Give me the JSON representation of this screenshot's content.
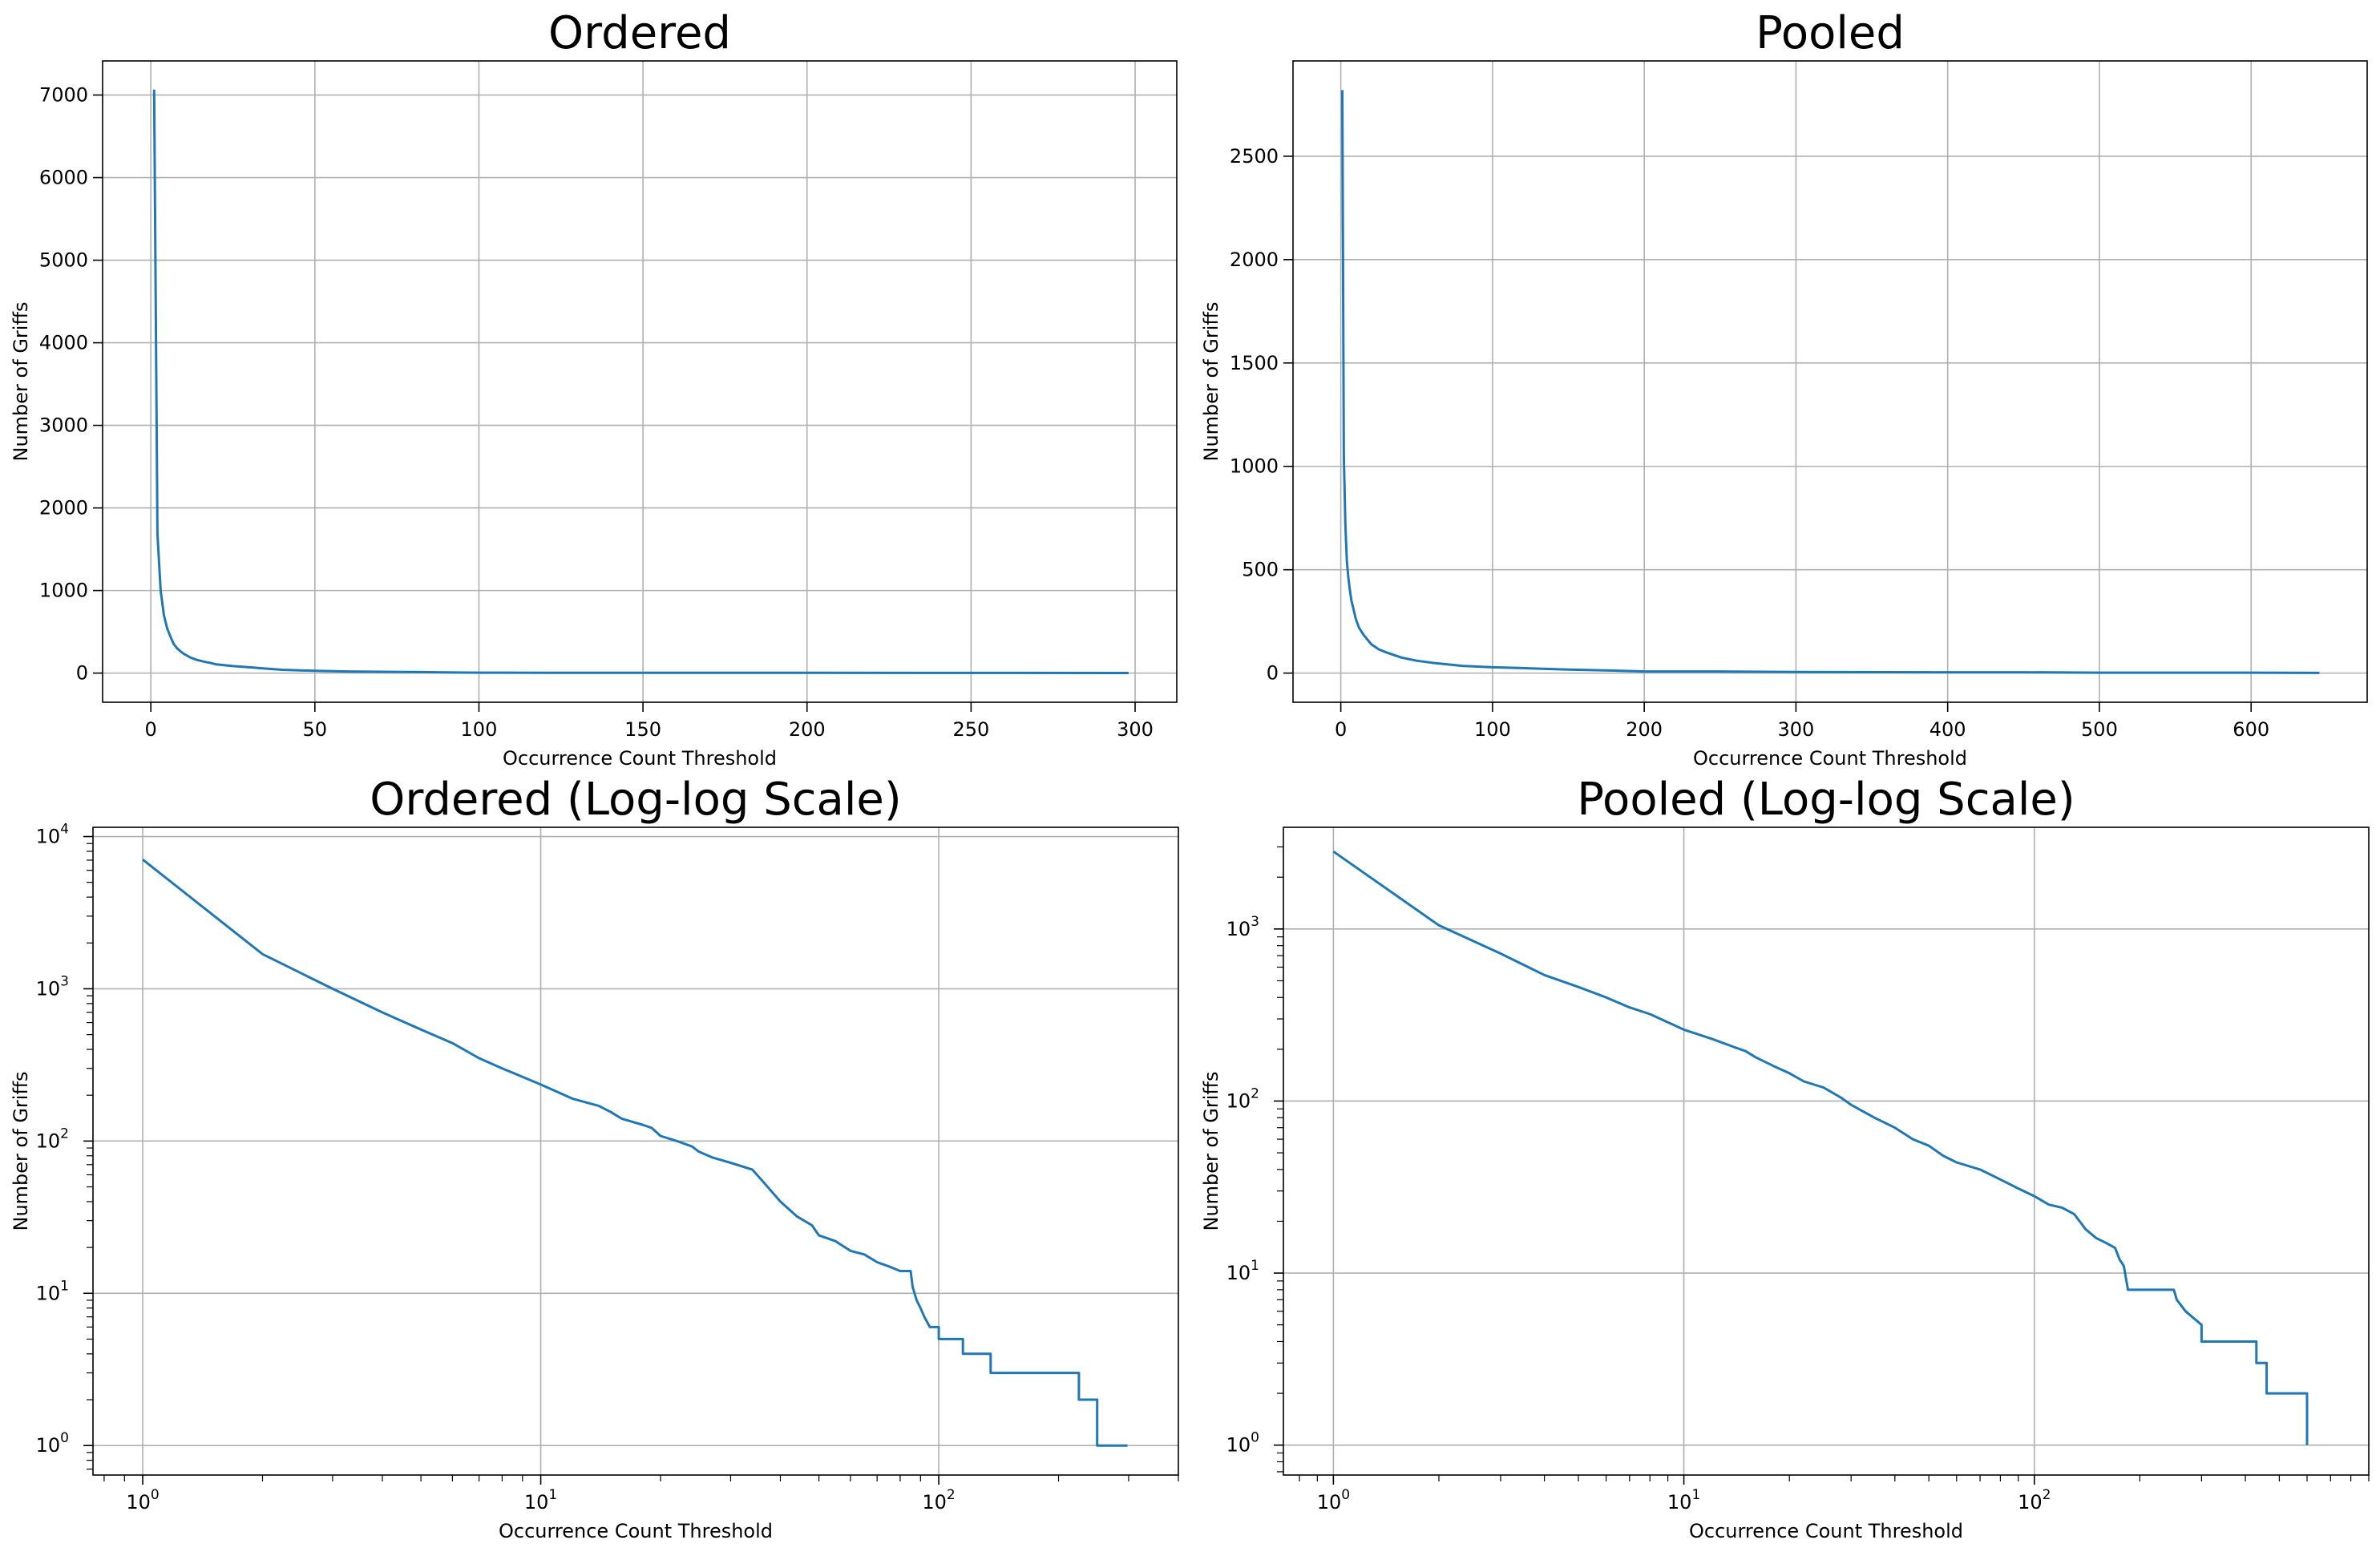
{
  "chart_data": [
    {
      "type": "line",
      "title": "Ordered",
      "xlabel": "Occurrence Count Threshold",
      "ylabel": "Number of Griffs",
      "xscale": "linear",
      "yscale": "linear",
      "xlim": [
        -14.7,
        312.7
      ],
      "ylim": [
        -353,
        7413
      ],
      "xticks": [
        0,
        50,
        100,
        150,
        200,
        250,
        300
      ],
      "xtick_labels": [
        "0",
        "50",
        "100",
        "150",
        "200",
        "250",
        "300"
      ],
      "yticks": [
        0,
        1000,
        2000,
        3000,
        4000,
        5000,
        6000,
        7000
      ],
      "ytick_labels": [
        "0",
        "1000",
        "2000",
        "3000",
        "4000",
        "5000",
        "6000",
        "7000"
      ],
      "grid": true,
      "color": "#1f77b4",
      "series": [
        {
          "x": [
            1,
            2,
            3,
            4,
            5,
            6,
            7,
            8,
            9,
            10,
            12,
            14,
            16,
            18,
            20,
            25,
            30,
            35,
            40,
            50,
            60,
            70,
            80,
            90,
            100,
            120,
            140,
            160,
            200,
            250,
            298
          ],
          "y": [
            7066,
            1690,
            1000,
            700,
            540,
            440,
            350,
            300,
            265,
            235,
            190,
            160,
            140,
            125,
            105,
            85,
            70,
            55,
            40,
            28,
            20,
            16,
            13,
            8,
            5,
            4,
            3,
            3,
            3,
            2,
            1
          ]
        }
      ]
    },
    {
      "type": "line",
      "title": "Pooled",
      "xlabel": "Occurrence Count Threshold",
      "ylabel": "Number of Griffs",
      "xscale": "linear",
      "yscale": "linear",
      "xlim": [
        -31.5,
        676.5
      ],
      "ylim": [
        -141,
        2961
      ],
      "xticks": [
        0,
        100,
        200,
        300,
        400,
        500,
        600
      ],
      "xtick_labels": [
        "0",
        "100",
        "200",
        "300",
        "400",
        "500",
        "600"
      ],
      "yticks": [
        0,
        500,
        1000,
        1500,
        2000,
        2500
      ],
      "ytick_labels": [
        "0",
        "500",
        "1000",
        "1500",
        "2000",
        "2500"
      ],
      "grid": true,
      "color": "#1f77b4",
      "series": [
        {
          "x": [
            1,
            2,
            3,
            4,
            5,
            6,
            7,
            8,
            10,
            12,
            15,
            20,
            25,
            30,
            40,
            50,
            60,
            80,
            100,
            120,
            150,
            180,
            200,
            250,
            300,
            400,
            450,
            500,
            550,
            600,
            645
          ],
          "y": [
            2820,
            1050,
            720,
            540,
            460,
            400,
            350,
            320,
            260,
            220,
            185,
            140,
            115,
            100,
            75,
            60,
            50,
            35,
            28,
            24,
            17,
            12,
            8,
            8,
            5,
            4,
            4,
            2,
            2,
            2,
            1
          ]
        }
      ]
    },
    {
      "type": "line",
      "title": "Ordered (Log-log Scale)",
      "xlabel": "Occurrence Count Threshold",
      "ylabel": "Number of Griffs",
      "xscale": "log",
      "yscale": "log",
      "xlim": [
        0.75,
        400
      ],
      "ylim": [
        0.64,
        11500
      ],
      "xticks": [
        1,
        10,
        100
      ],
      "xtick_labels": [
        [
          "10",
          "0"
        ],
        [
          "10",
          "1"
        ],
        [
          "10",
          "2"
        ]
      ],
      "yticks": [
        1,
        10,
        100,
        1000,
        10000
      ],
      "ytick_labels": [
        [
          "10",
          "0"
        ],
        [
          "10",
          "1"
        ],
        [
          "10",
          "2"
        ],
        [
          "10",
          "3"
        ],
        [
          "10",
          "4"
        ]
      ],
      "grid": true,
      "color": "#1f77b4",
      "series": [
        {
          "x": [
            1,
            2,
            3,
            4,
            5,
            6,
            7,
            8,
            10,
            12,
            14,
            15,
            16,
            18,
            19,
            20,
            22,
            24,
            25,
            27,
            30,
            34,
            36,
            40,
            44,
            48,
            50,
            55,
            60,
            65,
            70,
            75,
            80,
            85,
            86,
            88,
            90,
            92,
            95,
            100,
            100,
            115,
            115,
            135,
            135,
            225,
            225,
            250,
            250,
            298
          ],
          "y": [
            7066,
            1690,
            1000,
            700,
            540,
            440,
            350,
            300,
            235,
            190,
            170,
            155,
            140,
            128,
            122,
            108,
            100,
            92,
            85,
            78,
            72,
            65,
            55,
            40,
            32,
            28,
            24,
            22,
            19,
            18,
            16,
            15,
            14,
            14,
            11,
            9,
            8,
            7,
            6,
            6,
            5,
            5,
            4,
            4,
            3,
            3,
            2,
            2,
            1,
            1
          ]
        }
      ]
    },
    {
      "type": "line",
      "title": "Pooled (Log-log Scale)",
      "xlabel": "Occurrence Count Threshold",
      "ylabel": "Number of Griffs",
      "xscale": "log",
      "yscale": "log",
      "xlim": [
        0.72,
        900
      ],
      "ylim": [
        0.67,
        3900
      ],
      "xticks": [
        1,
        10,
        100
      ],
      "xtick_labels": [
        [
          "10",
          "0"
        ],
        [
          "10",
          "1"
        ],
        [
          "10",
          "2"
        ]
      ],
      "yticks": [
        1,
        10,
        100,
        1000
      ],
      "ytick_labels": [
        [
          "10",
          "0"
        ],
        [
          "10",
          "1"
        ],
        [
          "10",
          "2"
        ],
        [
          "10",
          "3"
        ]
      ],
      "grid": true,
      "color": "#1f77b4",
      "series": [
        {
          "x": [
            1,
            2,
            3,
            4,
            5,
            6,
            7,
            8,
            10,
            12,
            14,
            15,
            16,
            18,
            20,
            22,
            25,
            28,
            30,
            35,
            40,
            45,
            50,
            55,
            60,
            70,
            80,
            90,
            100,
            110,
            120,
            130,
            140,
            150,
            160,
            170,
            175,
            180,
            185,
            250,
            255,
            270,
            300,
            300,
            430,
            430,
            460,
            460,
            600,
            600
          ],
          "y": [
            2820,
            1050,
            720,
            540,
            460,
            400,
            350,
            320,
            260,
            230,
            205,
            195,
            180,
            160,
            145,
            130,
            120,
            105,
            95,
            80,
            70,
            60,
            55,
            48,
            44,
            40,
            35,
            31,
            28,
            25,
            24,
            22,
            18,
            16,
            15,
            14,
            12,
            11,
            8,
            8,
            7,
            6,
            5,
            4,
            4,
            3,
            3,
            2,
            2,
            1
          ]
        }
      ]
    }
  ]
}
